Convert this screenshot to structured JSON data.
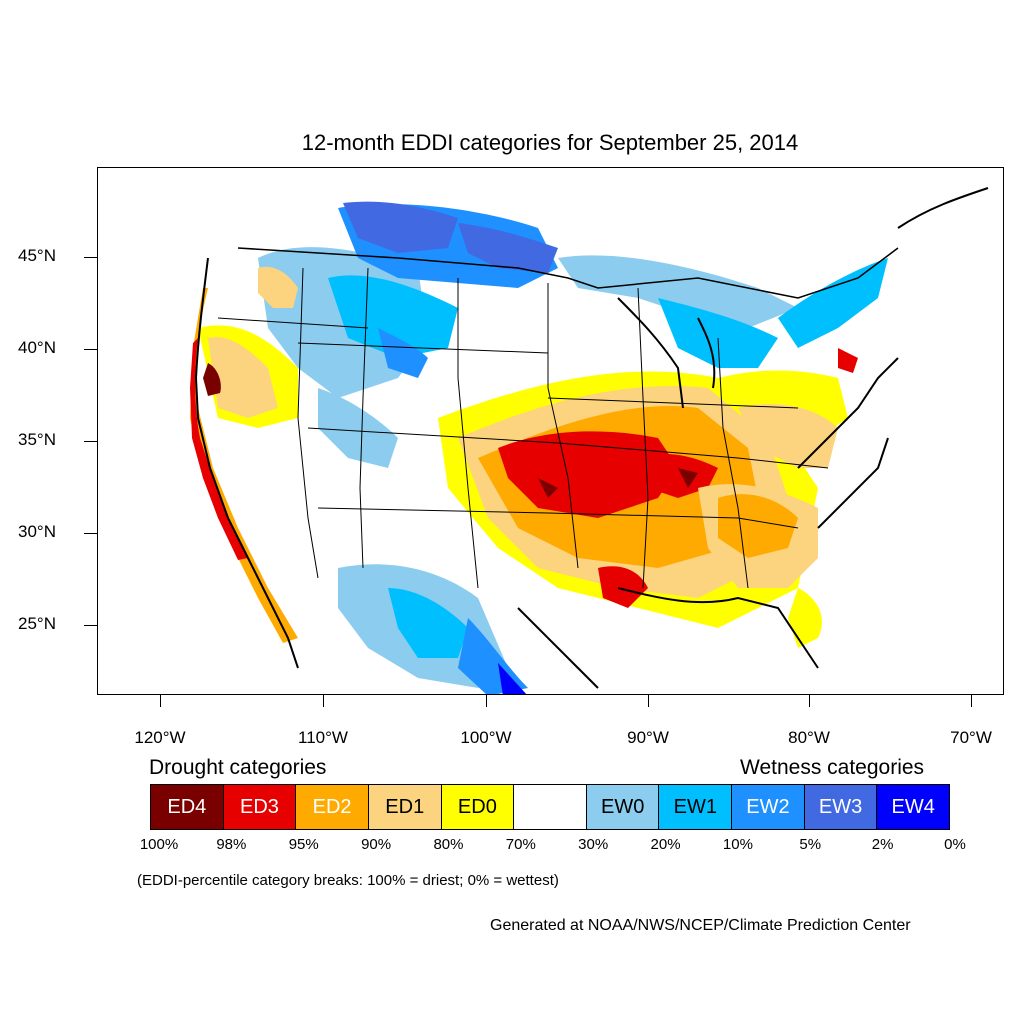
{
  "title": "12-month EDDI categories for September 25, 2014",
  "y_axis_labels": [
    "45°N",
    "40°N",
    "35°N",
    "30°N",
    "25°N"
  ],
  "x_axis_labels": [
    "120°W",
    "110°W",
    "100°W",
    "90°W",
    "80°W",
    "70°W"
  ],
  "legend": {
    "drought_heading": "Drought categories",
    "wetness_heading": "Wetness categories",
    "categories": [
      {
        "label": "ED4",
        "color": "#7a0000",
        "text_color": "#ffffff"
      },
      {
        "label": "ED3",
        "color": "#e60000",
        "text_color": "#ffffff"
      },
      {
        "label": "ED2",
        "color": "#ffaa00",
        "text_color": "#ffffff"
      },
      {
        "label": "ED1",
        "color": "#fcd37f",
        "text_color": "#000000"
      },
      {
        "label": "ED0",
        "color": "#ffff00",
        "text_color": "#000000"
      },
      {
        "label": "",
        "color": "#ffffff",
        "text_color": "#000000"
      },
      {
        "label": "EW0",
        "color": "#8ccdef",
        "text_color": "#000000"
      },
      {
        "label": "EW1",
        "color": "#00bfff",
        "text_color": "#000000"
      },
      {
        "label": "EW2",
        "color": "#1e90ff",
        "text_color": "#ffffff"
      },
      {
        "label": "EW3",
        "color": "#4169e1",
        "text_color": "#ffffff"
      },
      {
        "label": "EW4",
        "color": "#0000ff",
        "text_color": "#ffffff"
      }
    ],
    "percent_breaks": [
      "100%",
      "98%",
      "95%",
      "90%",
      "80%",
      "70%",
      "30%",
      "20%",
      "10%",
      "5%",
      "2%",
      "0%"
    ]
  },
  "note": "(EDDI-percentile category breaks: 100% = driest; 0% = wettest)",
  "credit": "Generated at NOAA/NWS/NCEP/Climate Prediction Center"
}
